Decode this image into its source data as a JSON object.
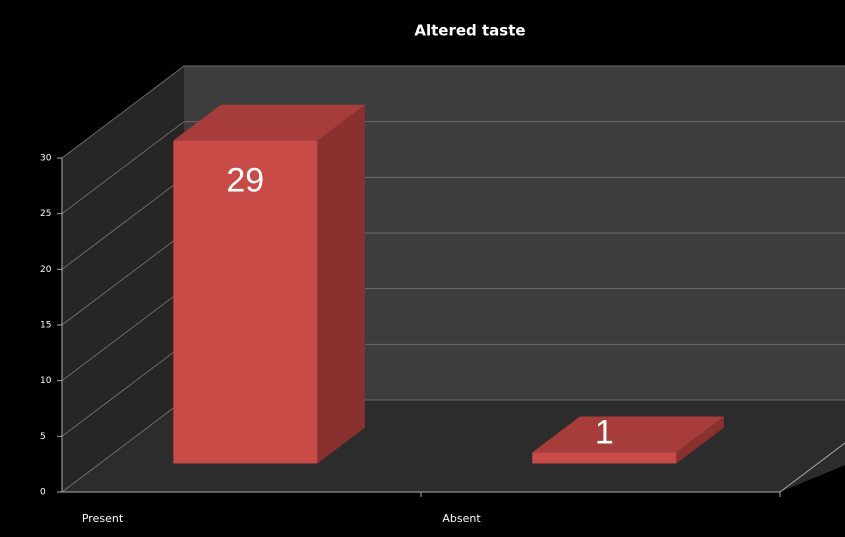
{
  "chart_data": {
    "type": "bar3d",
    "title": "Altered taste",
    "categories": [
      "Present",
      "Absent"
    ],
    "values": [
      29,
      1
    ],
    "color": "#c84b48",
    "ylim": [
      0,
      30
    ],
    "yticks": [
      0,
      5,
      10,
      15,
      20,
      25,
      30
    ],
    "grid": true
  }
}
